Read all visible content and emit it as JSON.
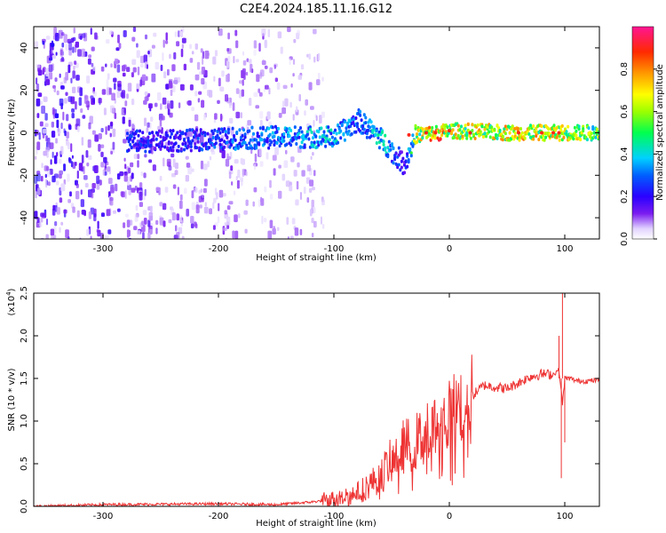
{
  "title": "C2E4.2024.185.11.16.G12",
  "chart_data": [
    {
      "type": "heatmap",
      "xlabel": "Height of straight line (km)",
      "ylabel": "Frequency (Hz)",
      "xlim": [
        -360,
        130
      ],
      "ylim": [
        -50,
        50
      ],
      "xticks": [
        -300,
        -200,
        -100,
        0,
        100
      ],
      "yticks": [
        -40,
        -20,
        0,
        20,
        40
      ],
      "colorbar": {
        "label": "Normalized spectral amplitude",
        "range": [
          0,
          1
        ],
        "ticks": [
          "0.0",
          "0.2",
          "0.4",
          "0.6",
          "0.8"
        ],
        "tick_values": [
          0,
          0.2,
          0.4,
          0.6,
          0.8
        ],
        "colors": [
          "#ffffff",
          "#dcc8ff",
          "#8a3cf0",
          "#6a00ff",
          "#0000ff",
          "#00c8ff",
          "#00ff66",
          "#b4ff00",
          "#ffff00",
          "#ff9900",
          "#ff2200",
          "#ff1493"
        ]
      },
      "noise_region_x": [
        -360,
        -110
      ],
      "ridge": [
        {
          "x": -275,
          "y": -4,
          "amp": 0.25
        },
        {
          "x": -245,
          "y": -4,
          "amp": 0.22
        },
        {
          "x": -200,
          "y": -3,
          "amp": 0.3
        },
        {
          "x": -150,
          "y": -2,
          "amp": 0.35
        },
        {
          "x": -100,
          "y": -2,
          "amp": 0.4
        },
        {
          "x": -80,
          "y": 6,
          "amp": 0.3
        },
        {
          "x": -60,
          "y": -3,
          "amp": 0.45
        },
        {
          "x": -40,
          "y": -15,
          "amp": 0.2
        },
        {
          "x": -30,
          "y": -1,
          "amp": 0.65
        },
        {
          "x": -10,
          "y": 0,
          "amp": 0.85
        },
        {
          "x": 0,
          "y": 1,
          "amp": 0.7
        },
        {
          "x": 50,
          "y": 0,
          "amp": 0.75
        },
        {
          "x": 100,
          "y": 0,
          "amp": 0.7
        },
        {
          "x": 130,
          "y": 0,
          "amp": 0.6
        }
      ]
    },
    {
      "type": "line",
      "xlabel": "Height of straight line (km)",
      "ylabel": "SNR (10 * v/v)",
      "y_multiplier": "(x10",
      "y_multiplier_exp": "4",
      "xlim": [
        -360,
        130
      ],
      "ylim": [
        0,
        2.5
      ],
      "xticks": [
        -300,
        -200,
        -100,
        0,
        100
      ],
      "yticks": [
        "0.0",
        "0.5",
        "1.0",
        "1.5",
        "2.0",
        "2.5"
      ],
      "ytick_values": [
        0,
        0.5,
        1.0,
        1.5,
        2.0,
        2.5
      ],
      "color": "#ee3333",
      "series": [
        {
          "x": [
            -360,
            -300,
            -200,
            -150,
            -120,
            -100,
            -80,
            -60,
            -50,
            -40,
            -30,
            -20,
            -10,
            0,
            10,
            20,
            30,
            40,
            50,
            60,
            70,
            80,
            90,
            95,
            98,
            100,
            105,
            110,
            120,
            130
          ],
          "y": [
            0.0,
            0.02,
            0.03,
            0.02,
            0.05,
            0.08,
            0.15,
            0.35,
            0.55,
            0.7,
            0.75,
            0.85,
            0.95,
            1.05,
            1.2,
            1.3,
            1.42,
            1.4,
            1.38,
            1.45,
            1.52,
            1.55,
            1.55,
            1.6,
            1.2,
            1.5,
            1.5,
            1.47,
            1.47,
            1.48
          ]
        }
      ],
      "spikes": [
        {
          "x": 98,
          "y": 2.5
        },
        {
          "x": 97,
          "y": 0.33
        },
        {
          "x": 100,
          "y": 0.75
        },
        {
          "x": 95,
          "y": 2.0
        }
      ]
    }
  ]
}
